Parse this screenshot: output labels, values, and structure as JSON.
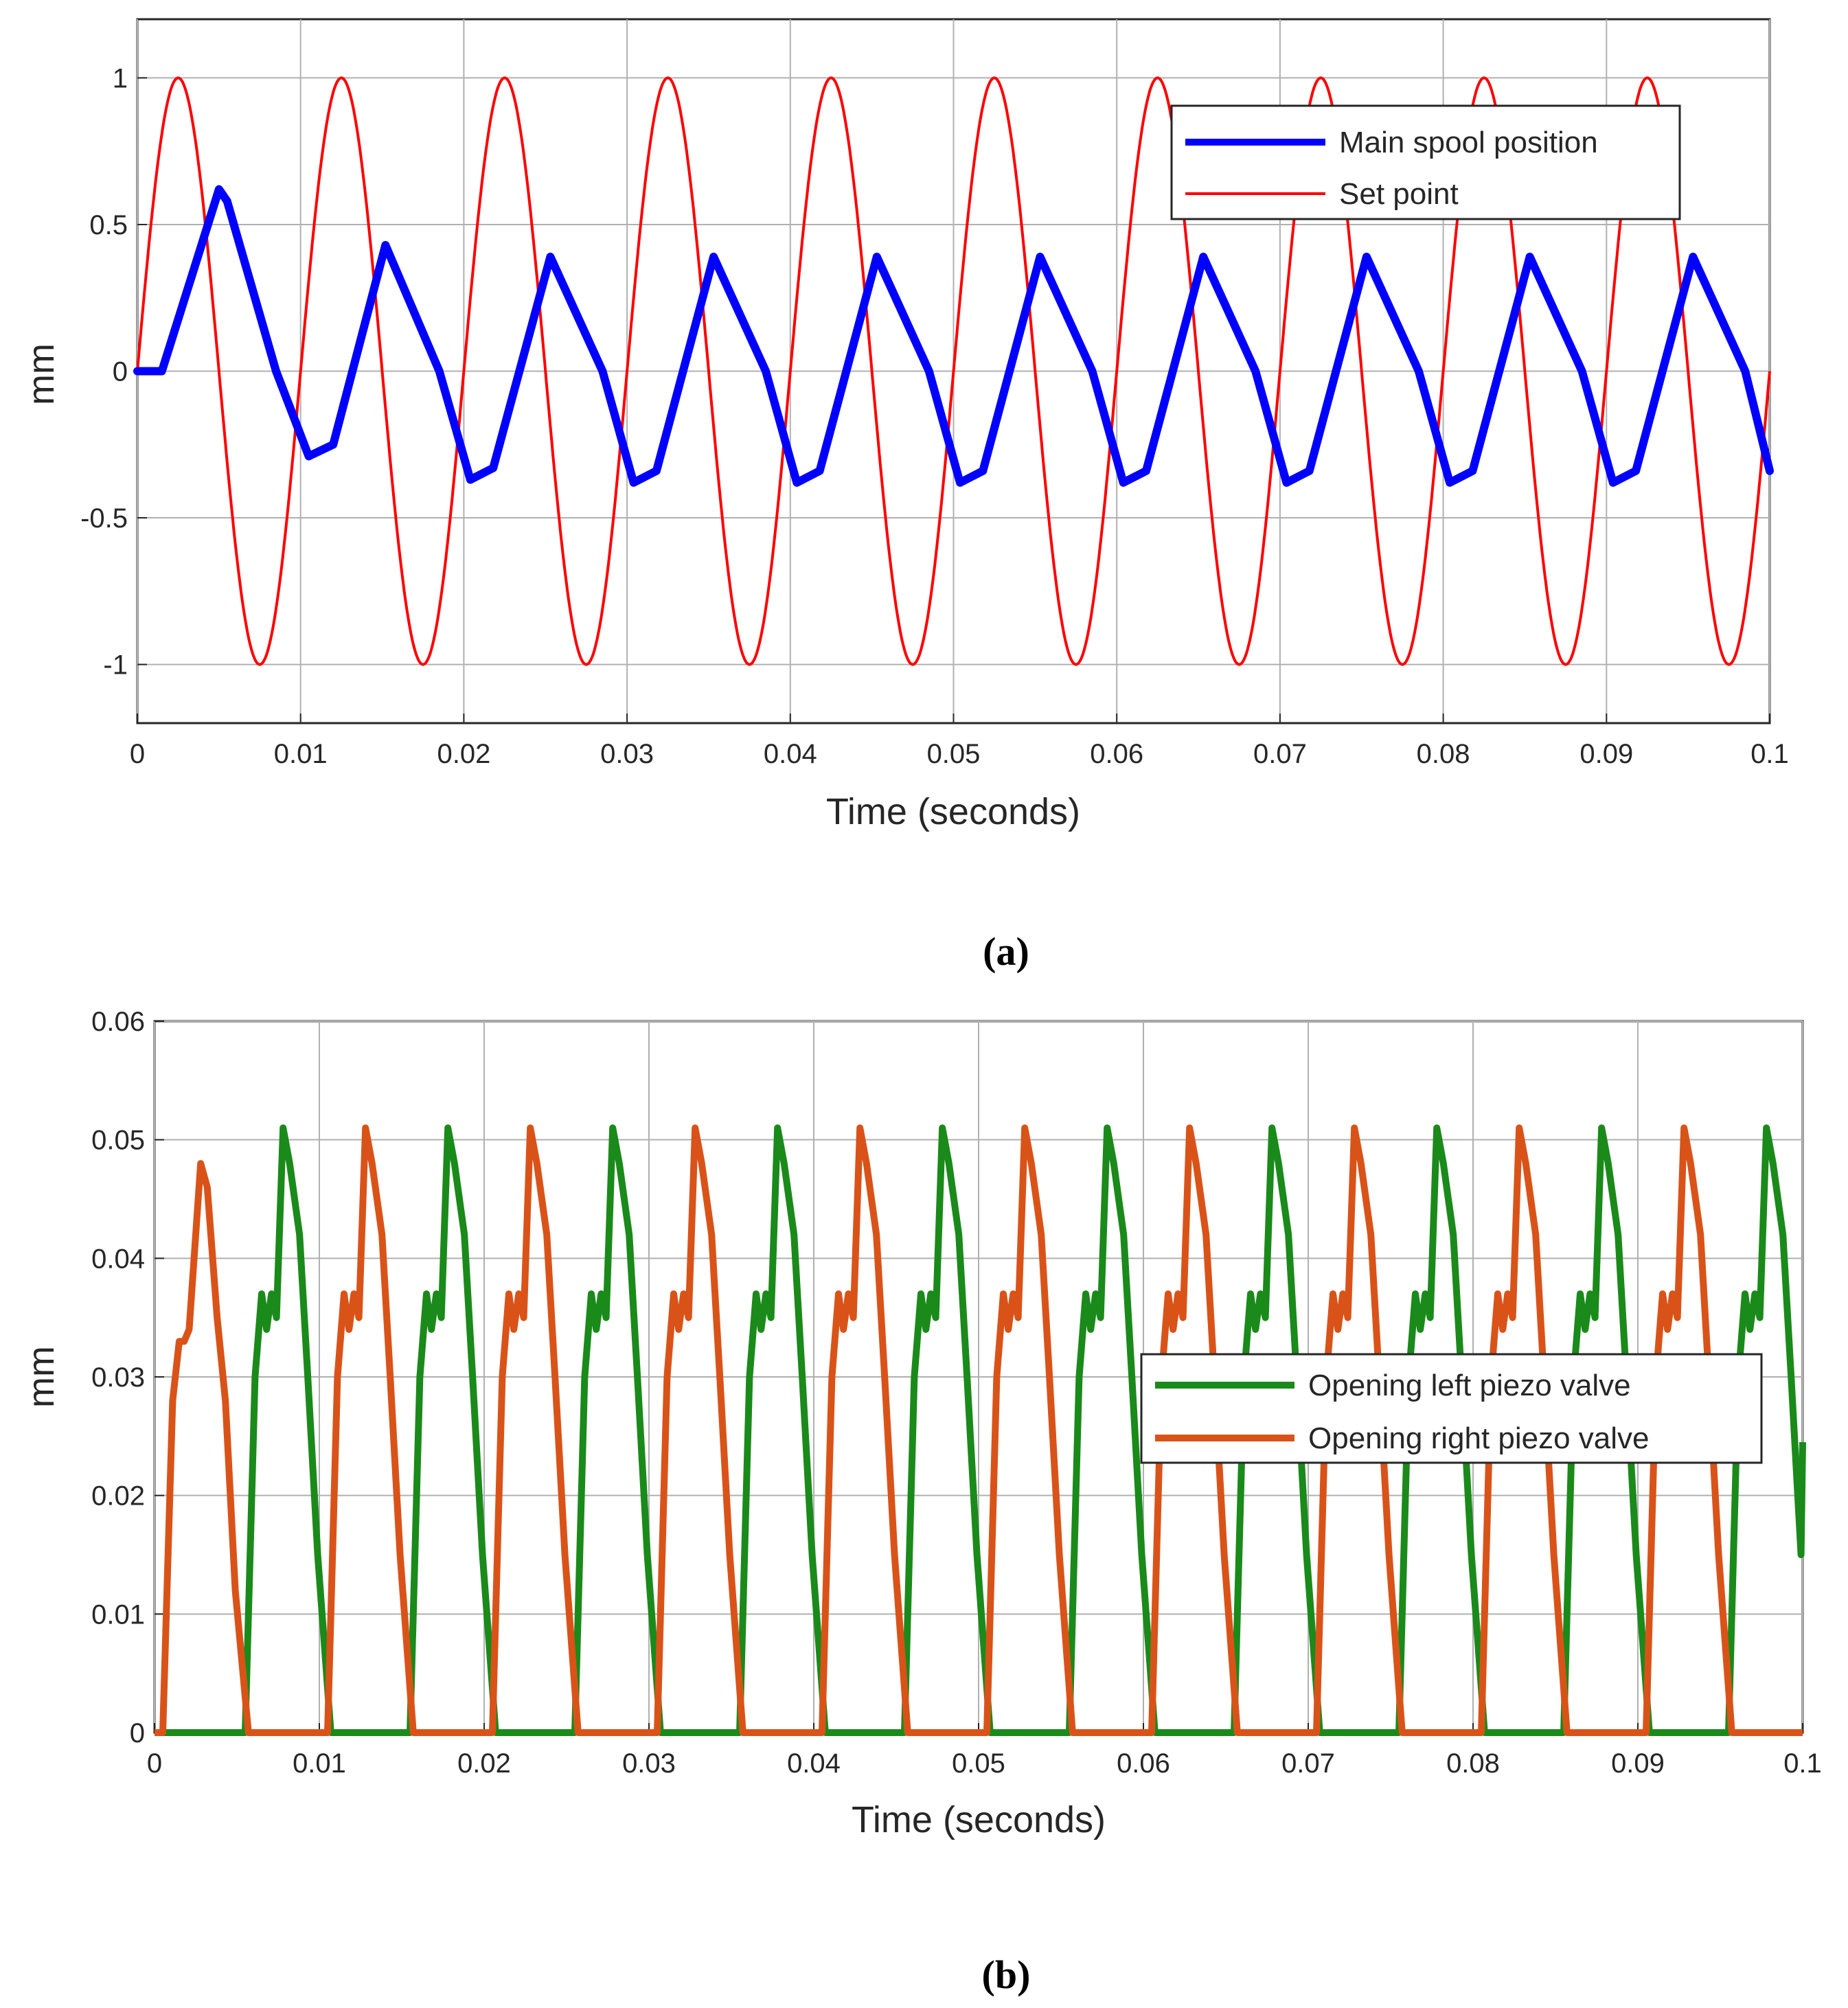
{
  "chart_data": [
    {
      "type": "line",
      "caption": "(a)",
      "xlabel": "Time (seconds)",
      "ylabel": "mm",
      "xlim": [
        0,
        0.1
      ],
      "ylim": [
        -1.2,
        1.2
      ],
      "xticks": [
        0,
        0.01,
        0.02,
        0.03,
        0.04,
        0.05,
        0.06,
        0.07,
        0.08,
        0.09,
        0.1
      ],
      "xtick_labels": [
        "0",
        "0.01",
        "0.02",
        "0.03",
        "0.04",
        "0.05",
        "0.06",
        "0.07",
        "0.08",
        "0.09",
        "0.1"
      ],
      "yticks": [
        -1,
        -0.5,
        0,
        0.5,
        1
      ],
      "ytick_labels": [
        "-1",
        "-0.5",
        "0",
        "0.5",
        "1"
      ],
      "grid": true,
      "legend_position": "top-right",
      "series": [
        {
          "name": "Main spool position",
          "color": "#0000ff",
          "description": "Delayed response to set point; first peak ~0.62 at t=0.005, then steady oscillation between about -0.38 and 0.39 at 100 Hz, lagging set point by ~0.003 s",
          "x": [
            0,
            0.0015,
            0.005,
            0.0055,
            0.0085,
            0.0105,
            0.012,
            0.0152,
            0.0185,
            0.0204,
            0.0218,
            0.0253,
            0.0285,
            0.0304,
            0.0318,
            0.0353,
            0.0385,
            0.0404,
            0.0418,
            0.0453,
            0.0485,
            0.0504,
            0.0518,
            0.0553,
            0.0585,
            0.0604,
            0.0618,
            0.0653,
            0.0685,
            0.0704,
            0.0718,
            0.0753,
            0.0785,
            0.0804,
            0.0818,
            0.0853,
            0.0885,
            0.0904,
            0.0918,
            0.0953,
            0.0985,
            0.1
          ],
          "y": [
            0,
            0.0,
            0.62,
            0.58,
            0.0,
            -0.29,
            -0.25,
            0.43,
            0.0,
            -0.37,
            -0.33,
            0.39,
            0.0,
            -0.38,
            -0.34,
            0.39,
            0.0,
            -0.38,
            -0.34,
            0.39,
            0.0,
            -0.38,
            -0.34,
            0.39,
            0.0,
            -0.38,
            -0.34,
            0.39,
            0.0,
            -0.38,
            -0.34,
            0.39,
            0.0,
            -0.38,
            -0.34,
            0.39,
            0.0,
            -0.38,
            -0.34,
            0.39,
            0.0,
            -0.34
          ]
        },
        {
          "name": "Set point",
          "color": "#ff0000",
          "description": "Sine wave, amplitude 1 mm, frequency 100 Hz (period 0.01 s), starting at 0",
          "function": "sin",
          "amplitude": 1,
          "frequency_hz": 100
        }
      ]
    },
    {
      "type": "line",
      "caption": "(b)",
      "xlabel": "Time (seconds)",
      "ylabel": "mm",
      "xlim": [
        0,
        0.1
      ],
      "ylim": [
        0,
        0.06
      ],
      "xticks": [
        0,
        0.01,
        0.02,
        0.03,
        0.04,
        0.05,
        0.06,
        0.07,
        0.08,
        0.09,
        0.1
      ],
      "xtick_labels": [
        "0",
        "0.01",
        "0.02",
        "0.03",
        "0.04",
        "0.05",
        "0.06",
        "0.07",
        "0.08",
        "0.09",
        "0.1"
      ],
      "yticks": [
        0,
        0.01,
        0.02,
        0.03,
        0.04,
        0.05,
        0.06
      ],
      "ytick_labels": [
        "0",
        "0.01",
        "0.02",
        "0.03",
        "0.04",
        "0.05",
        "0.06"
      ],
      "grid": true,
      "legend_position": "right",
      "series": [
        {
          "name": "Opening left piezo valve",
          "color": "#1a8a1a",
          "description": "Pulses of ~0.051 mm peak every 0.01 s, rising at ~0.0055 + 0.01k and closing at ~0.0107 + 0.01k",
          "pulse_period": 0.01,
          "pulse_starts": [
            0.0055,
            0.0155,
            0.0255,
            0.0355,
            0.0455,
            0.0555,
            0.0655,
            0.0755,
            0.0855,
            0.0955
          ],
          "pulse_shape_dt": [
            0,
            0.0006,
            0.001,
            0.0013,
            0.0016,
            0.0019,
            0.0023,
            0.0027,
            0.0033,
            0.0038,
            0.0044,
            0.0052
          ],
          "pulse_shape_y": [
            0,
            0.03,
            0.037,
            0.034,
            0.037,
            0.035,
            0.051,
            0.048,
            0.042,
            0.03,
            0.015,
            0
          ]
        },
        {
          "name": "Opening right piezo valve",
          "color": "#d95319",
          "description": "Pulses of ~0.051 mm peak every 0.01 s, offset by half a period from the left valve; first pulse peaks at ~0.048",
          "pulse_period": 0.01,
          "pulse_starts": [
            0.0005,
            0.0105,
            0.0205,
            0.0305,
            0.0405,
            0.0505,
            0.0605,
            0.0705,
            0.0805,
            0.0905
          ],
          "pulse_shape_dt": [
            0,
            0.0006,
            0.001,
            0.0013,
            0.0016,
            0.0019,
            0.0023,
            0.0027,
            0.0033,
            0.0038,
            0.0044,
            0.0052
          ],
          "pulse_shape_y": [
            0,
            0.03,
            0.037,
            0.034,
            0.037,
            0.035,
            0.051,
            0.048,
            0.042,
            0.03,
            0.015,
            0
          ],
          "first_pulse_shape_y": [
            0,
            0.028,
            0.033,
            0.033,
            0.034,
            0.04,
            0.048,
            0.046,
            0.035,
            0.028,
            0.012,
            0
          ]
        }
      ]
    }
  ]
}
